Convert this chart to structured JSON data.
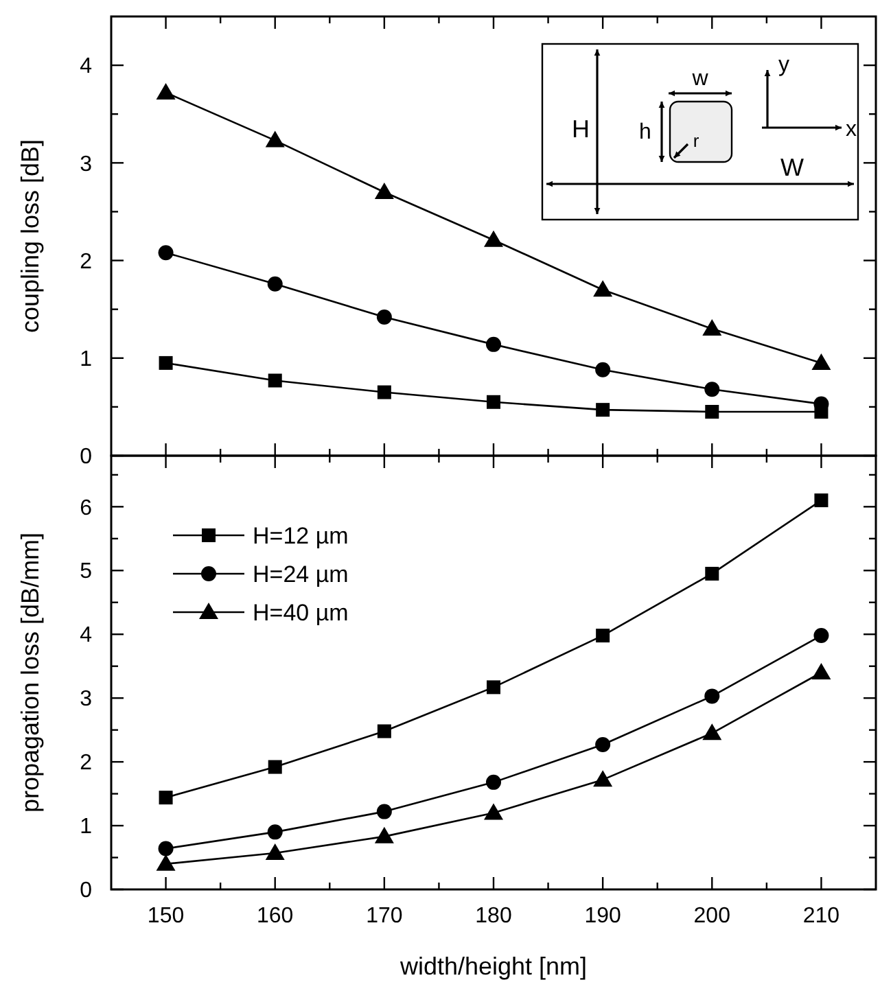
{
  "chart_data": [
    {
      "type": "line",
      "ylabel": "coupling loss [dB]",
      "x": [
        150,
        160,
        170,
        180,
        190,
        200,
        210
      ],
      "xlim": [
        145,
        215
      ],
      "xticks": [
        150,
        {
          "value": 155,
          "label": null
        },
        160,
        {
          "value": 165,
          "label": null
        },
        170,
        {
          "value": 175,
          "label": null
        },
        180,
        {
          "value": 185,
          "label": null
        },
        190,
        {
          "value": 195,
          "label": null
        },
        200,
        {
          "value": 205,
          "label": null
        },
        210
      ],
      "ylim": [
        0,
        4.5
      ],
      "yticks": [
        0,
        {
          "value": 0.5,
          "label": null
        },
        1,
        {
          "value": 1.5,
          "label": null
        },
        2,
        {
          "value": 2.5,
          "label": null
        },
        3,
        {
          "value": 3.5,
          "label": null
        },
        4
      ],
      "tick_labels": "y",
      "grid": false,
      "legend": false,
      "line_style": "solid",
      "annotations": [
        "H",
        "W",
        "w",
        "h",
        "r",
        "y",
        "x"
      ],
      "series": [
        {
          "color": "#000000",
          "marker": "square",
          "values": [
            0.95,
            0.77,
            0.65,
            0.55,
            0.47,
            0.45,
            0.45
          ]
        },
        {
          "color": "#000000",
          "marker": "circle",
          "values": [
            2.08,
            1.76,
            1.42,
            1.14,
            0.88,
            0.68,
            0.53
          ]
        },
        {
          "color": "#000000",
          "marker": "triangle",
          "values": [
            3.72,
            3.23,
            2.7,
            2.21,
            1.7,
            1.3,
            0.95
          ]
        }
      ]
    },
    {
      "type": "line",
      "ylabel": "propagation loss [dB/mm]",
      "xlabel": "width/height [nm]",
      "x": [
        150,
        160,
        170,
        180,
        190,
        200,
        210
      ],
      "xlim": [
        145,
        215
      ],
      "xticks": [
        150,
        {
          "value": 155,
          "label": null
        },
        160,
        {
          "value": 165,
          "label": null
        },
        170,
        {
          "value": 175,
          "label": null
        },
        180,
        {
          "value": 185,
          "label": null
        },
        190,
        {
          "value": 195,
          "label": null
        },
        200,
        {
          "value": 205,
          "label": null
        },
        210
      ],
      "ylim": [
        0,
        6.8
      ],
      "yticks": [
        0,
        {
          "value": 0.5,
          "label": null
        },
        1,
        {
          "value": 1.5,
          "label": null
        },
        2,
        {
          "value": 2.5,
          "label": null
        },
        3,
        {
          "value": 3.5,
          "label": null
        },
        4,
        {
          "value": 4.5,
          "label": null
        },
        5,
        {
          "value": 5.5,
          "label": null
        },
        6,
        {
          "value": 6.5,
          "label": null
        }
      ],
      "grid": false,
      "legend": "top left",
      "line_style": "solid",
      "series": [
        {
          "name": "H=12 µm",
          "color": "#000000",
          "marker": "square",
          "values": [
            1.44,
            1.92,
            2.48,
            3.17,
            3.98,
            4.95,
            6.1
          ]
        },
        {
          "name": "H=24 µm",
          "color": "#000000",
          "marker": "circle",
          "values": [
            0.64,
            0.9,
            1.22,
            1.68,
            2.27,
            3.03,
            3.98
          ]
        },
        {
          "name": "H=40 µm",
          "color": "#000000",
          "marker": "triangle",
          "values": [
            0.4,
            0.57,
            0.83,
            1.2,
            1.72,
            2.45,
            3.4
          ]
        }
      ]
    }
  ]
}
